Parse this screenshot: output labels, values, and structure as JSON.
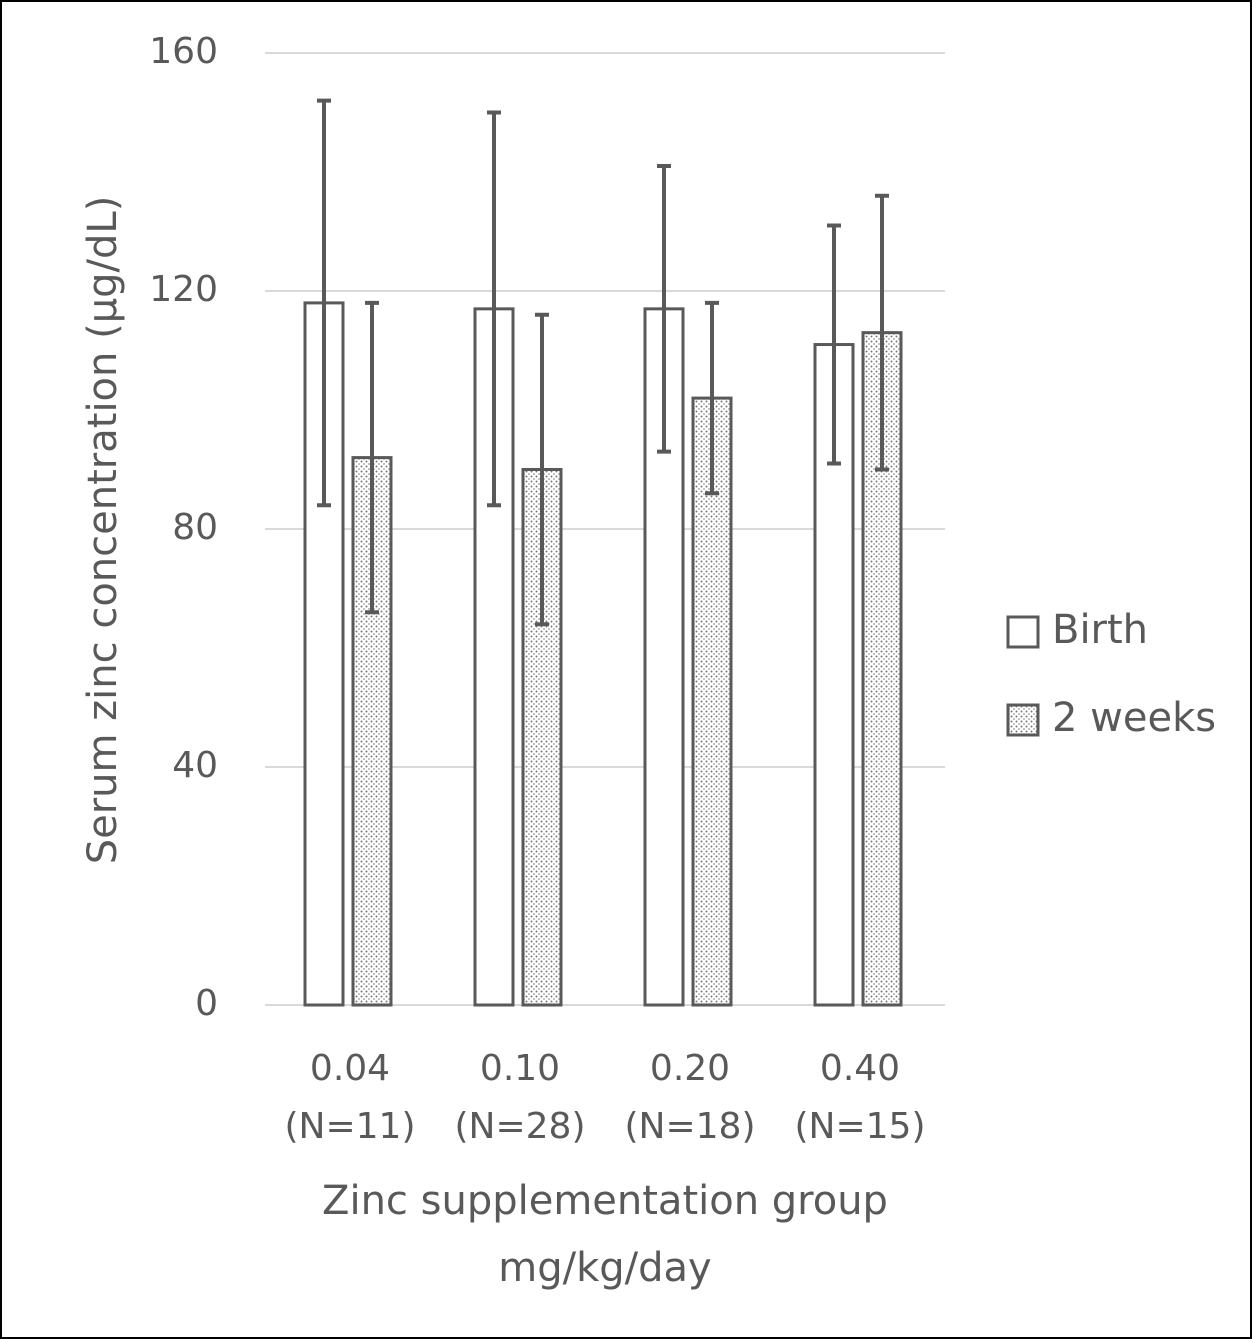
{
  "chart_data": {
    "type": "bar",
    "y_label": "Serum zinc concentration (µg/dL)",
    "x_label": [
      "Zinc supplementation group",
      "mg/kg/day"
    ],
    "categories": [
      [
        "0.04",
        "(N=11)"
      ],
      [
        "0.10",
        "(N=28)"
      ],
      [
        "0.20",
        "(N=18)"
      ],
      [
        "0.40",
        "(N=15)"
      ]
    ],
    "series": [
      {
        "name": "Birth",
        "color": "#ffffff",
        "values": [
          118,
          117,
          117,
          111
        ],
        "errors": [
          34,
          33,
          24,
          20
        ]
      },
      {
        "name": "2 weeks",
        "color": "dotted",
        "values": [
          92,
          90,
          102,
          113
        ],
        "errors": [
          26,
          26,
          16,
          23
        ]
      }
    ],
    "ylim": [
      0,
      160
    ],
    "yticks": [
      0,
      40,
      80,
      120,
      160
    ],
    "grid": true,
    "legend": "right"
  }
}
